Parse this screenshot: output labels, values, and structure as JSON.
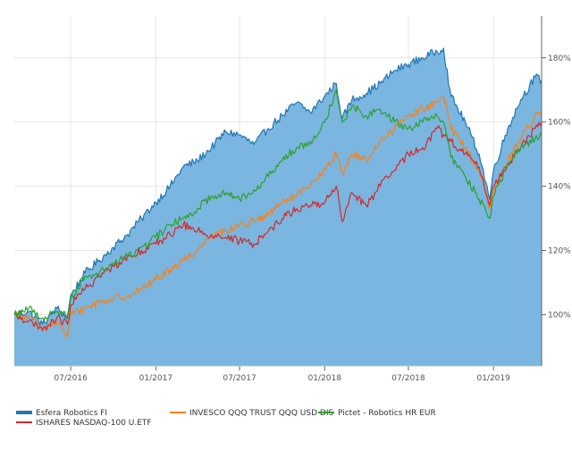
{
  "chart_data": {
    "type": "line",
    "title": "",
    "xlabel": "",
    "ylabel": "",
    "x_ticks": [
      "07/2016",
      "01/2017",
      "07/2017",
      "01/2018",
      "07/2018",
      "01/2019"
    ],
    "x_tick_dates": [
      "2016-07-01",
      "2017-01-01",
      "2017-07-01",
      "2018-01-01",
      "2018-07-01",
      "2019-01-01"
    ],
    "x_range": [
      "2016-03-01",
      "2019-04-15"
    ],
    "y_ticks": [
      "100%",
      "120%",
      "140%",
      "160%",
      "180%"
    ],
    "y_tick_values": [
      100,
      120,
      140,
      160,
      180
    ],
    "ylim": [
      84,
      193
    ],
    "grid": true,
    "legend_position": "bottom",
    "series": [
      {
        "name": "Esfera Robotics FI",
        "color": "#1f77b4",
        "fill_color": "#7ab6e0",
        "style": "area",
        "x": [
          "2016-03-01",
          "2016-04-01",
          "2016-05-01",
          "2016-06-01",
          "2016-06-24",
          "2016-07-01",
          "2016-08-01",
          "2016-09-01",
          "2016-10-01",
          "2016-11-01",
          "2016-12-01",
          "2017-01-01",
          "2017-02-01",
          "2017-03-01",
          "2017-04-01",
          "2017-05-01",
          "2017-06-01",
          "2017-07-01",
          "2017-08-01",
          "2017-09-01",
          "2017-10-01",
          "2017-11-01",
          "2017-12-01",
          "2018-01-01",
          "2018-01-26",
          "2018-02-08",
          "2018-03-01",
          "2018-04-01",
          "2018-05-01",
          "2018-06-01",
          "2018-07-01",
          "2018-08-01",
          "2018-09-01",
          "2018-09-15",
          "2018-10-01",
          "2018-11-01",
          "2018-12-01",
          "2018-12-24",
          "2019-01-01",
          "2019-02-01",
          "2019-03-01",
          "2019-04-01",
          "2019-04-15"
        ],
        "values": [
          100,
          101,
          97,
          102,
          99,
          106,
          113,
          117,
          121,
          125,
          130,
          135,
          140,
          146,
          148,
          152,
          157,
          156,
          153,
          158,
          162,
          166,
          163,
          168,
          172,
          161,
          167,
          169,
          172,
          176,
          178,
          180,
          182,
          183,
          168,
          160,
          150,
          136,
          145,
          158,
          167,
          174,
          173
        ]
      },
      {
        "name": "INVESCO QQQ TRUST QQQ USD DIS",
        "color": "#ff7f0e",
        "style": "line",
        "x": [
          "2016-03-01",
          "2016-04-01",
          "2016-05-01",
          "2016-06-01",
          "2016-06-24",
          "2016-07-01",
          "2016-08-01",
          "2016-09-01",
          "2016-10-01",
          "2016-11-01",
          "2016-12-01",
          "2017-01-01",
          "2017-02-01",
          "2017-03-01",
          "2017-04-01",
          "2017-05-01",
          "2017-06-01",
          "2017-07-01",
          "2017-08-01",
          "2017-09-01",
          "2017-10-01",
          "2017-11-01",
          "2017-12-01",
          "2018-01-01",
          "2018-01-26",
          "2018-02-08",
          "2018-03-01",
          "2018-04-01",
          "2018-05-01",
          "2018-06-01",
          "2018-07-01",
          "2018-08-01",
          "2018-09-01",
          "2018-09-15",
          "2018-10-01",
          "2018-11-01",
          "2018-12-01",
          "2018-12-24",
          "2019-01-01",
          "2019-02-01",
          "2019-03-01",
          "2019-04-01",
          "2019-04-15"
        ],
        "values": [
          100,
          99,
          96,
          98,
          93,
          100,
          102,
          104,
          105,
          106,
          108,
          111,
          114,
          117,
          120,
          125,
          126,
          128,
          129,
          131,
          135,
          137,
          140,
          145,
          150,
          144,
          150,
          148,
          154,
          158,
          162,
          164,
          166,
          168,
          158,
          152,
          145,
          133,
          138,
          148,
          155,
          162,
          163
        ]
      },
      {
        "name": "ISHARES NASDAQ-100 U.ETF",
        "color": "#d62728",
        "style": "line",
        "x": [
          "2016-03-01",
          "2016-04-01",
          "2016-05-01",
          "2016-06-01",
          "2016-06-24",
          "2016-07-01",
          "2016-08-01",
          "2016-09-01",
          "2016-10-01",
          "2016-11-01",
          "2016-12-01",
          "2017-01-01",
          "2017-02-01",
          "2017-03-01",
          "2017-04-01",
          "2017-05-01",
          "2017-06-01",
          "2017-07-01",
          "2017-08-01",
          "2017-09-01",
          "2017-10-01",
          "2017-11-01",
          "2017-12-01",
          "2018-01-01",
          "2018-01-26",
          "2018-02-08",
          "2018-03-01",
          "2018-04-01",
          "2018-05-01",
          "2018-06-01",
          "2018-07-01",
          "2018-08-01",
          "2018-09-01",
          "2018-09-15",
          "2018-10-01",
          "2018-11-01",
          "2018-12-01",
          "2018-12-24",
          "2019-01-01",
          "2019-02-01",
          "2019-03-01",
          "2019-04-01",
          "2019-04-15"
        ],
        "values": [
          100,
          98,
          95,
          99,
          97,
          103,
          108,
          112,
          115,
          118,
          120,
          122,
          125,
          128,
          126,
          125,
          124,
          123,
          122,
          126,
          130,
          133,
          134,
          135,
          140,
          129,
          138,
          134,
          140,
          145,
          150,
          152,
          158,
          156,
          154,
          150,
          146,
          134,
          140,
          147,
          152,
          158,
          160
        ]
      },
      {
        "name": "Pictet - Robotics HR EUR",
        "color": "#2ca02c",
        "style": "line",
        "x": [
          "2016-03-01",
          "2016-04-01",
          "2016-05-01",
          "2016-06-01",
          "2016-06-24",
          "2016-07-01",
          "2016-08-01",
          "2016-09-01",
          "2016-10-01",
          "2016-11-01",
          "2016-12-01",
          "2017-01-01",
          "2017-02-01",
          "2017-03-01",
          "2017-04-01",
          "2017-05-01",
          "2017-06-01",
          "2017-07-01",
          "2017-08-01",
          "2017-09-01",
          "2017-10-01",
          "2017-11-01",
          "2017-12-01",
          "2018-01-01",
          "2018-01-26",
          "2018-02-08",
          "2018-03-01",
          "2018-04-01",
          "2018-05-01",
          "2018-06-01",
          "2018-07-01",
          "2018-08-01",
          "2018-09-01",
          "2018-09-15",
          "2018-10-01",
          "2018-11-01",
          "2018-12-01",
          "2018-12-24",
          "2019-01-01",
          "2019-02-01",
          "2019-03-01",
          "2019-04-01",
          "2019-04-15"
        ],
        "values": [
          100,
          102,
          99,
          101,
          100,
          105,
          112,
          113,
          116,
          118,
          121,
          124,
          128,
          130,
          133,
          137,
          138,
          136,
          139,
          143,
          148,
          152,
          154,
          160,
          170,
          160,
          165,
          162,
          164,
          160,
          158,
          160,
          162,
          160,
          149,
          143,
          136,
          130,
          137,
          147,
          152,
          155,
          156
        ]
      }
    ]
  }
}
